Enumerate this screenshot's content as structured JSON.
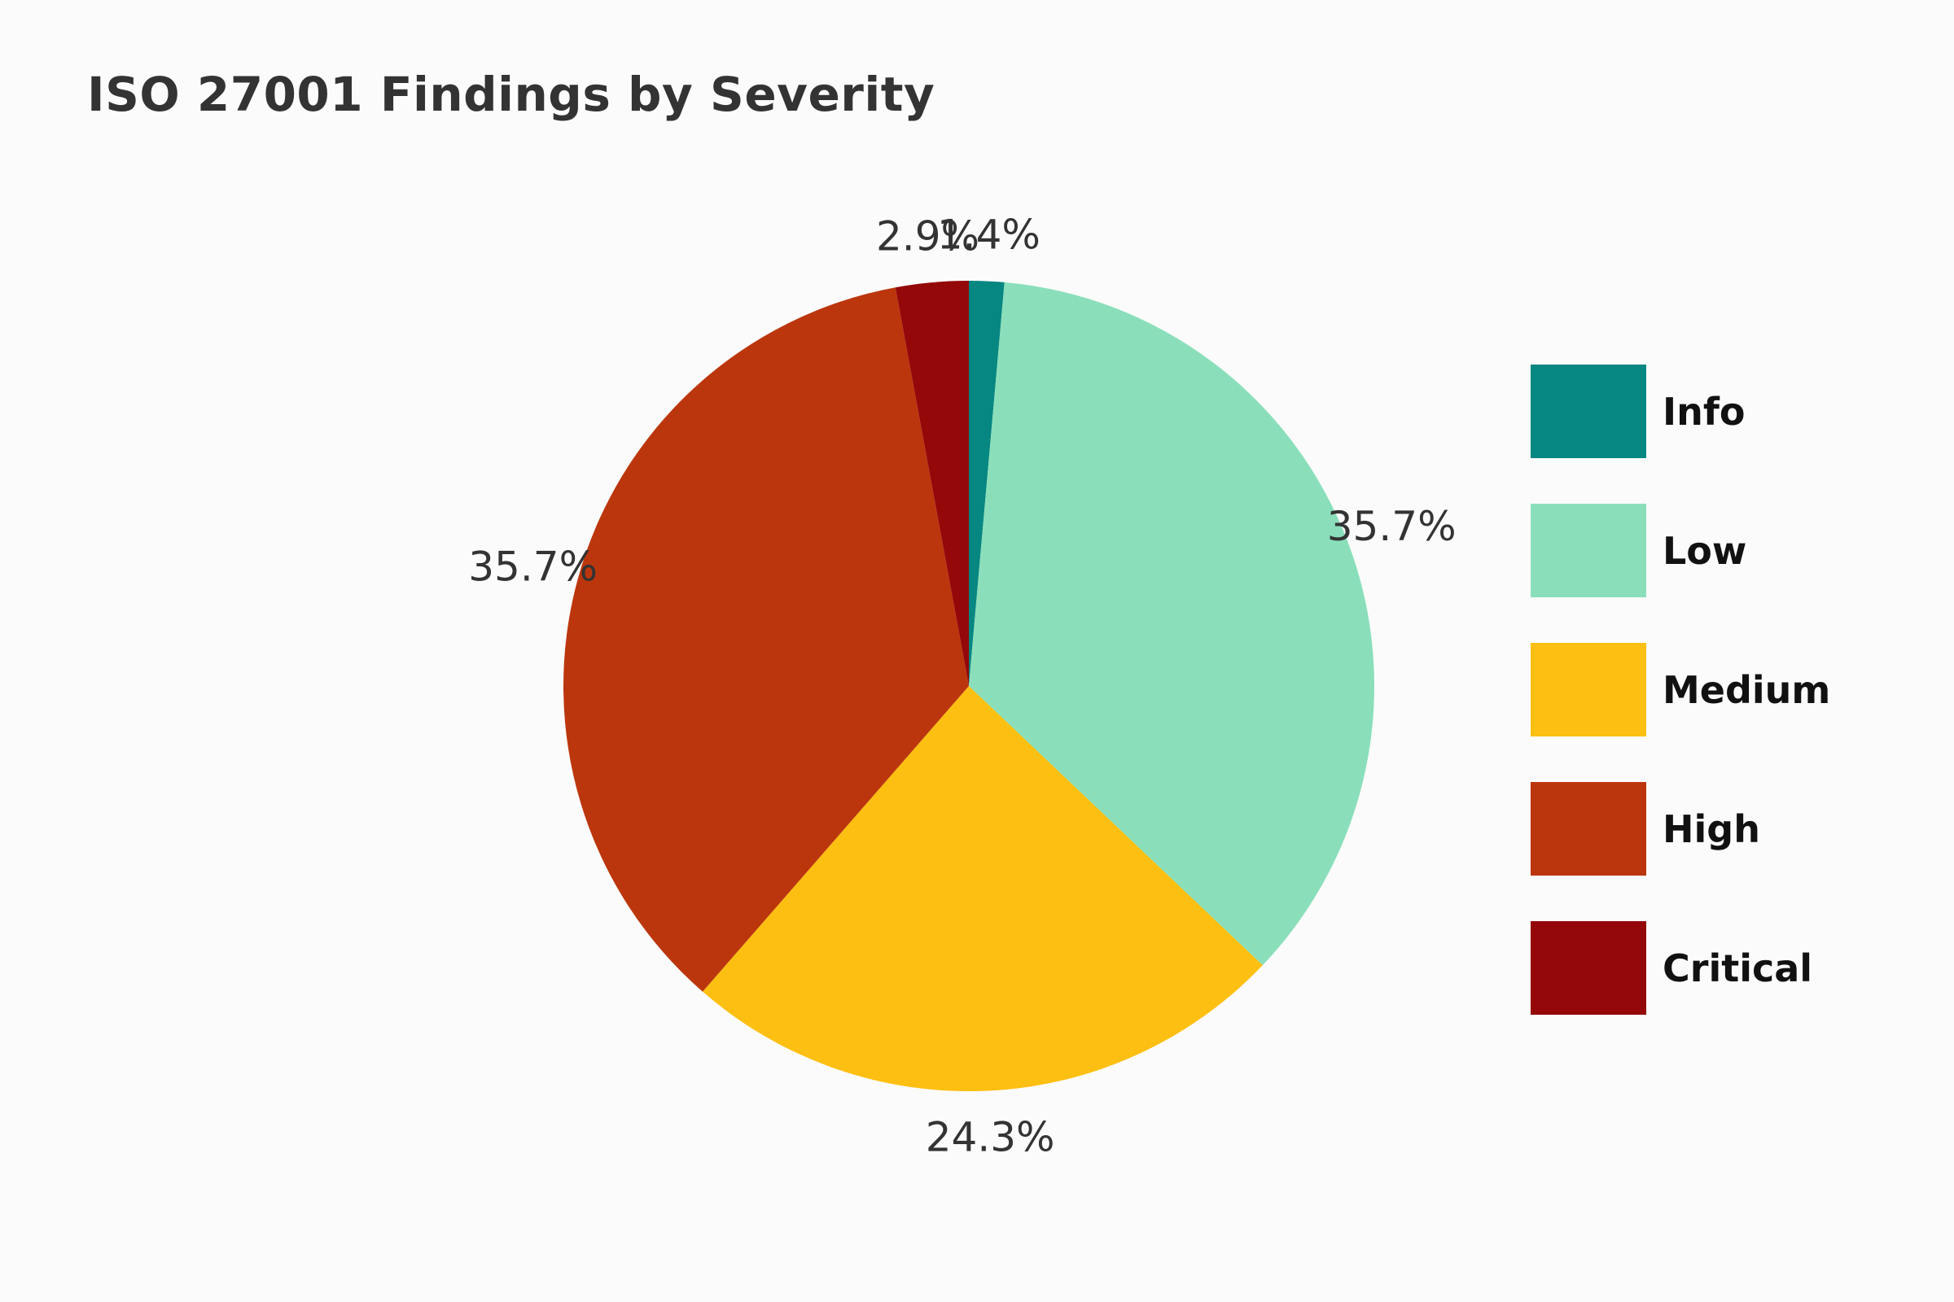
{
  "chart_data": {
    "type": "pie",
    "title": "ISO 27001 Findings by Severity",
    "categories": [
      "Info",
      "Low",
      "Medium",
      "High",
      "Critical"
    ],
    "values": [
      1.4,
      35.7,
      24.3,
      35.7,
      2.9
    ],
    "labels": [
      "1.4%",
      "35.7%",
      "24.3%",
      "35.7%",
      "2.9%"
    ],
    "colors": [
      "#078781",
      "#8adfba",
      "#fdbf11",
      "#bc360d",
      "#94080a"
    ],
    "start_angle": "top (12 o'clock)",
    "direction": "clockwise",
    "legend_position": "right"
  }
}
